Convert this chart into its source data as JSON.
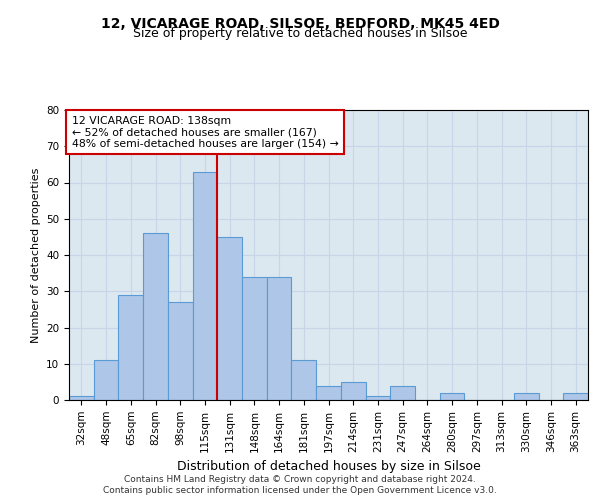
{
  "title1": "12, VICARAGE ROAD, SILSOE, BEDFORD, MK45 4ED",
  "title2": "Size of property relative to detached houses in Silsoe",
  "xlabel": "Distribution of detached houses by size in Silsoe",
  "ylabel": "Number of detached properties",
  "categories": [
    "32sqm",
    "48sqm",
    "65sqm",
    "82sqm",
    "98sqm",
    "115sqm",
    "131sqm",
    "148sqm",
    "164sqm",
    "181sqm",
    "197sqm",
    "214sqm",
    "231sqm",
    "247sqm",
    "264sqm",
    "280sqm",
    "297sqm",
    "313sqm",
    "330sqm",
    "346sqm",
    "363sqm"
  ],
  "values": [
    1,
    11,
    29,
    46,
    27,
    63,
    45,
    34,
    34,
    11,
    4,
    5,
    1,
    4,
    0,
    2,
    0,
    0,
    2,
    0,
    2
  ],
  "bar_color": "#aec6e8",
  "bar_edgecolor": "#5b9bd5",
  "bar_linewidth": 0.8,
  "vline_x": 5.5,
  "vline_color": "#cc0000",
  "vline_linewidth": 1.5,
  "annotation_text": "12 VICARAGE ROAD: 138sqm\n← 52% of detached houses are smaller (167)\n48% of semi-detached houses are larger (154) →",
  "annotation_box_edgecolor": "#cc0000",
  "annotation_box_facecolor": "#ffffff",
  "ylim": [
    0,
    80
  ],
  "yticks": [
    0,
    10,
    20,
    30,
    40,
    50,
    60,
    70,
    80
  ],
  "grid_color": "#c8d4e8",
  "background_color": "#dce8f0",
  "footer1": "Contains HM Land Registry data © Crown copyright and database right 2024.",
  "footer2": "Contains public sector information licensed under the Open Government Licence v3.0.",
  "title1_fontsize": 10,
  "title2_fontsize": 9,
  "xlabel_fontsize": 9,
  "ylabel_fontsize": 8,
  "tick_fontsize": 7.5,
  "footer_fontsize": 6.5
}
